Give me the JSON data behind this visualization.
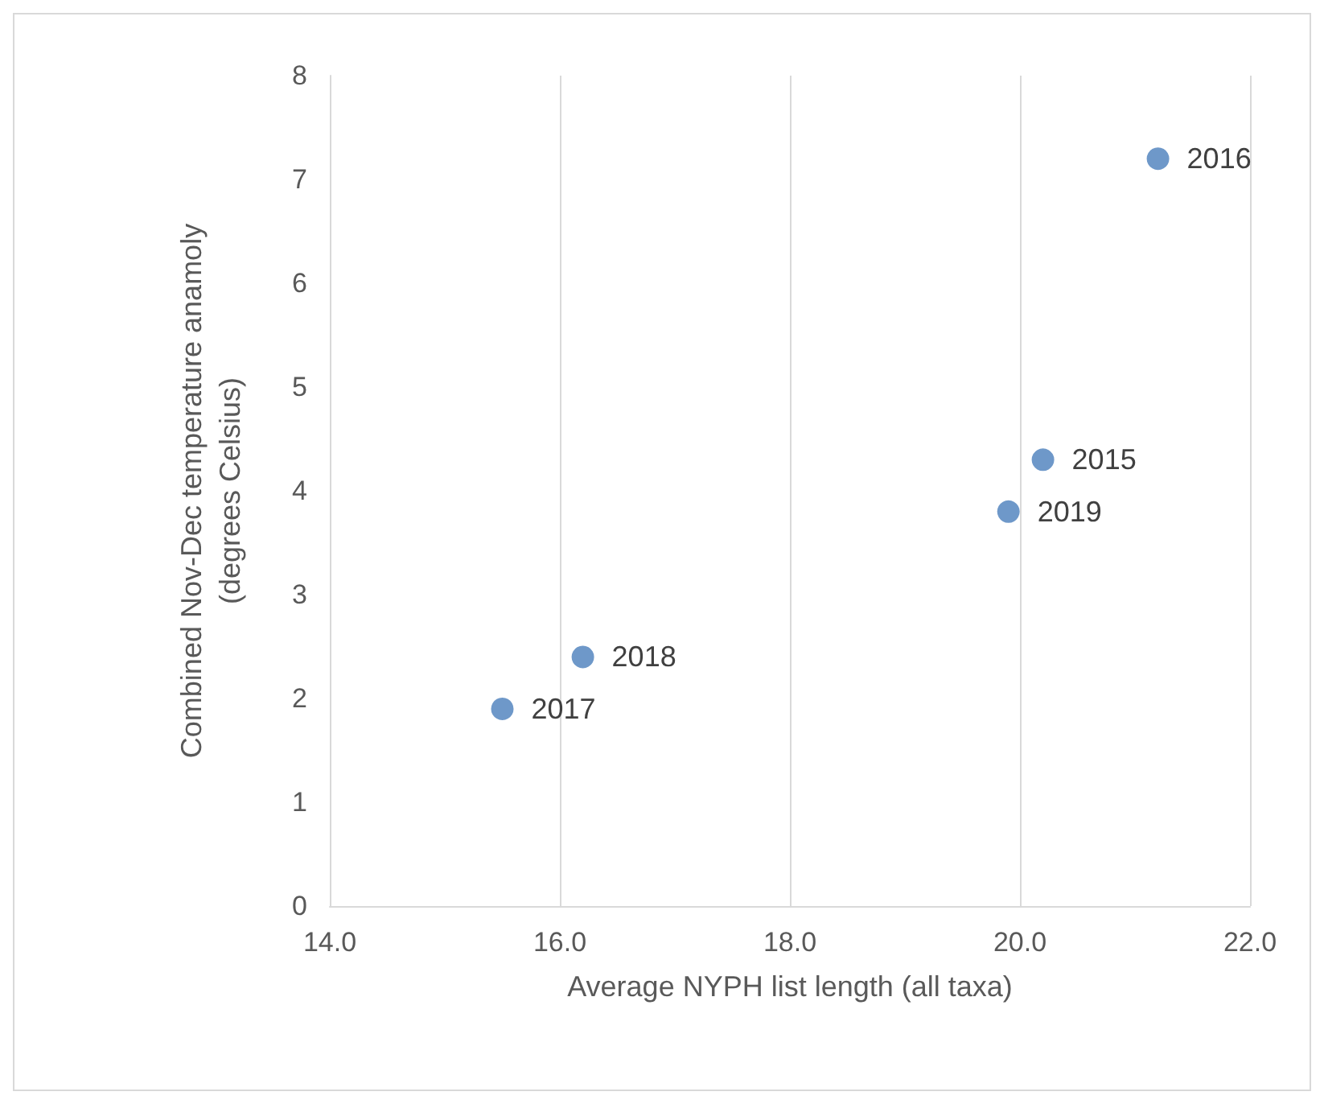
{
  "chart_data": {
    "type": "scatter",
    "xlabel": "Average NYPH list length (all taxa)",
    "ylabel": "Combined Nov-Dec temperature anamoly\n(degrees Celsius)",
    "x": [
      20.2,
      21.2,
      15.5,
      16.2,
      19.9
    ],
    "values": [
      4.3,
      7.2,
      1.9,
      2.4,
      3.8
    ],
    "color": "#4a7ebb",
    "xlim": [
      14,
      22
    ],
    "xticks": [
      {
        "value": 14,
        "label": "14.0"
      },
      {
        "value": 16,
        "label": "16.0"
      },
      {
        "value": 18,
        "label": "18.0"
      },
      {
        "value": 20,
        "label": "20.0"
      },
      {
        "value": 22,
        "label": "22.0"
      }
    ],
    "ylim": [
      0,
      8
    ],
    "yticks": [
      0,
      1,
      2,
      3,
      4,
      5,
      6,
      7,
      8
    ],
    "grid": "x",
    "marker": "circle",
    "annotations": [
      {
        "text": "2015",
        "x": 20.2,
        "y": 4.3
      },
      {
        "text": "2016",
        "x": 21.2,
        "y": 7.2
      },
      {
        "text": "2017",
        "x": 15.5,
        "y": 1.9
      },
      {
        "text": "2018",
        "x": 16.2,
        "y": 2.4
      },
      {
        "text": "2019",
        "x": 19.9,
        "y": 3.8
      }
    ]
  }
}
